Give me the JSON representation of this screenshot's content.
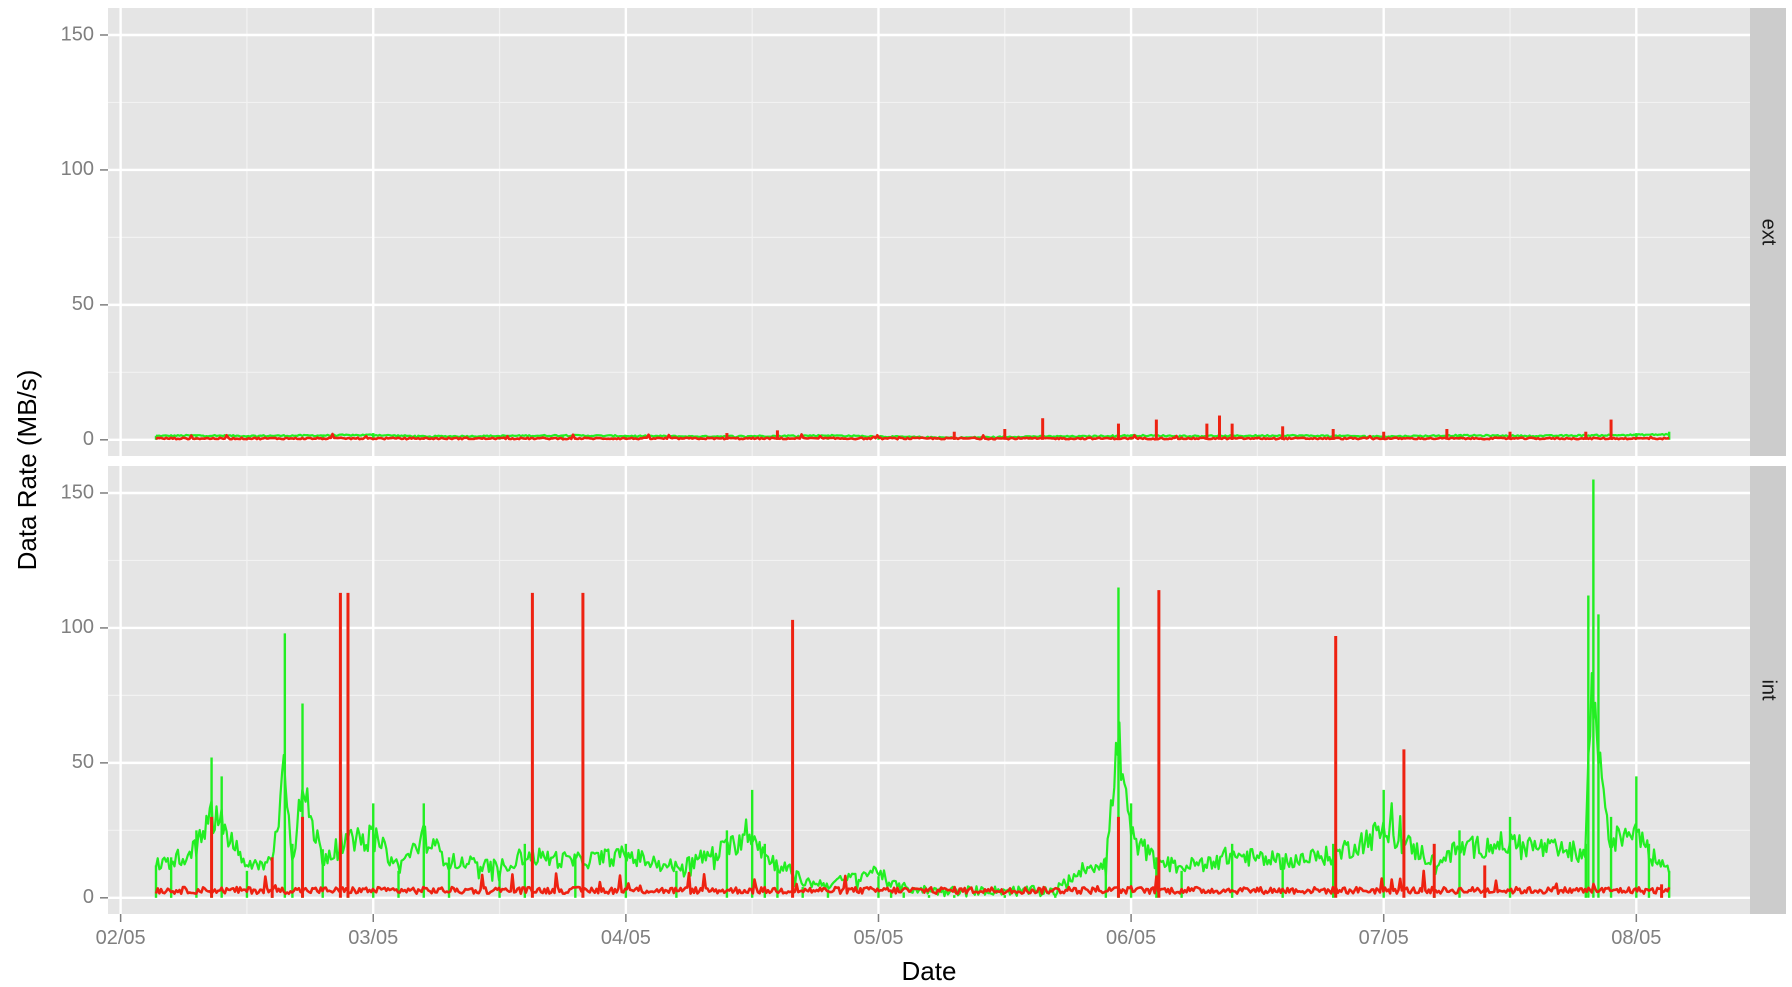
{
  "chart_data": {
    "type": "line",
    "xlabel": "Date",
    "ylabel": "Data Rate (MB/s)",
    "x_ticks": [
      "02/05",
      "03/05",
      "04/05",
      "05/05",
      "06/05",
      "07/05",
      "08/05"
    ],
    "y_ticks": [
      0,
      50,
      100,
      150
    ],
    "ylim": [
      -6,
      160
    ],
    "xlim": [
      -0.05,
      6.45
    ],
    "x_unit": "months after 02/05",
    "grid": true,
    "legend": "none",
    "colors": {
      "series_a": "#22ee22",
      "series_b": "#ee2211"
    },
    "panels": [
      {
        "facet": "ext",
        "series": [
          {
            "color": "#22ee22",
            "baseline": 1.0,
            "noise": 1.2,
            "x": [
              0.14,
              0.3,
              0.5,
              0.8,
              1.0,
              1.2,
              1.5,
              1.75,
              2.0,
              2.3,
              2.6,
              2.8,
              3.0,
              3.3,
              3.6,
              3.8,
              4.0,
              4.2,
              4.4,
              4.6,
              4.8,
              5.0,
              5.3,
              5.6,
              5.8,
              6.0,
              6.13
            ],
            "values": [
              1.5,
              2,
              1.5,
              2,
              2.5,
              1,
              1.5,
              2,
              1.5,
              1,
              1.5,
              2,
              1,
              0.5,
              1,
              1,
              2,
              1.5,
              1.5,
              2,
              1.5,
              1,
              2,
              1.5,
              2,
              2.5,
              3
            ]
          },
          {
            "color": "#ee2211",
            "baseline": 0.2,
            "noise": 0.6,
            "x": [
              1.8,
              2.4,
              2.6,
              3.3,
              3.5,
              3.65,
              3.95,
              4.1,
              4.3,
              4.35,
              4.4,
              4.6,
              4.8,
              5.0,
              5.25,
              5.5,
              5.8,
              5.9
            ],
            "values": [
              0.5,
              2.5,
              3.5,
              3,
              4,
              8,
              6,
              7.5,
              6,
              9,
              6,
              5,
              4,
              3,
              4,
              3,
              3,
              7.5
            ]
          }
        ]
      },
      {
        "facet": "int",
        "series": [
          {
            "color": "#22ee22",
            "baseline": 8,
            "noise": 8,
            "x": [
              0.14,
              0.2,
              0.3,
              0.36,
              0.4,
              0.5,
              0.6,
              0.65,
              0.68,
              0.72,
              0.8,
              0.9,
              1.0,
              1.1,
              1.2,
              1.3,
              1.5,
              1.6,
              1.8,
              2.0,
              2.2,
              2.4,
              2.5,
              2.55,
              2.6,
              2.7,
              2.8,
              3.0,
              3.05,
              3.1,
              3.2,
              3.3,
              3.5,
              3.7,
              3.9,
              3.95,
              4.0,
              4.1,
              4.2,
              4.4,
              4.6,
              4.8,
              5.0,
              5.2,
              5.3,
              5.5,
              5.8,
              5.81,
              5.83,
              5.85,
              5.9,
              6.0,
              6.05,
              6.13
            ],
            "values": [
              12,
              15,
              25,
              52,
              45,
              10,
              15,
              98,
              20,
              72,
              18,
              30,
              35,
              10,
              35,
              15,
              10,
              20,
              15,
              20,
              10,
              25,
              40,
              20,
              12,
              4,
              3,
              8,
              3,
              2,
              1,
              1,
              1,
              1,
              15,
              115,
              35,
              15,
              10,
              20,
              15,
              20,
              40,
              15,
              25,
              30,
              20,
              112,
              155,
              105,
              30,
              45,
              20,
              10
            ]
          },
          {
            "color": "#ee2211",
            "baseline": 1.5,
            "noise": 2.5,
            "x": [
              0.36,
              0.6,
              0.72,
              0.87,
              0.9,
              1.63,
              1.83,
              2.66,
              3.95,
              4.11,
              4.81,
              5.08,
              5.2,
              5.4,
              6.1
            ],
            "values": [
              30,
              15,
              30,
              113,
              113,
              113,
              113,
              103,
              30,
              114,
              97,
              55,
              20,
              12,
              5
            ]
          }
        ]
      }
    ]
  }
}
